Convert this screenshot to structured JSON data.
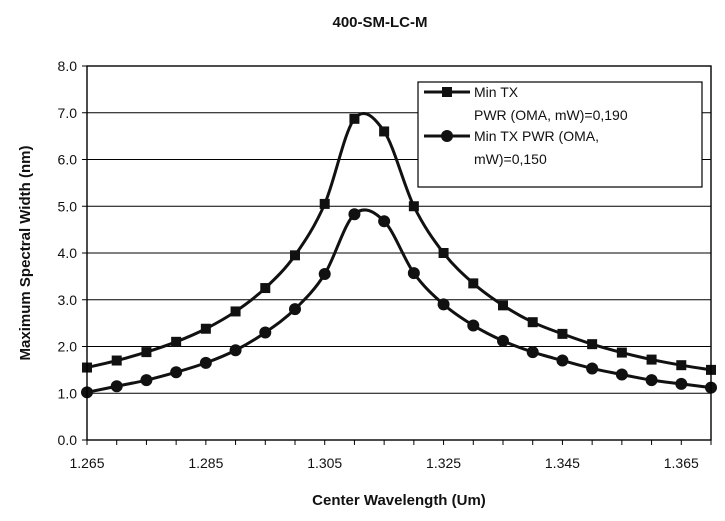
{
  "chart_data": {
    "type": "line",
    "title": "400-SM-LC-M",
    "xlabel": "Center Wavelength (Um)",
    "ylabel": "Maximum Spectral Width (nm)",
    "xlim": [
      1.265,
      1.37
    ],
    "ylim": [
      0,
      8
    ],
    "xticks": [
      "1.265",
      "1.285",
      "1.305",
      "1.325",
      "1.345",
      "1.365"
    ],
    "yticks": [
      "0.0",
      "1.0",
      "2.0",
      "3.0",
      "4.0",
      "5.0",
      "6.0",
      "7.0",
      "8.0"
    ],
    "grid": "horizontal",
    "legend_position": "top-right",
    "series": [
      {
        "name": "Min TX\nPWR (OMA, mW)=0,190",
        "marker": "square",
        "x": [
          1.265,
          1.27,
          1.275,
          1.28,
          1.285,
          1.29,
          1.295,
          1.3,
          1.305,
          1.31,
          1.315,
          1.32,
          1.325,
          1.33,
          1.335,
          1.34,
          1.345,
          1.35,
          1.355,
          1.36,
          1.365,
          1.37
        ],
        "y": [
          1.55,
          1.7,
          1.88,
          2.1,
          2.38,
          2.75,
          3.25,
          3.95,
          5.05,
          6.87,
          6.6,
          5.0,
          4.0,
          3.35,
          2.88,
          2.52,
          2.27,
          2.05,
          1.87,
          1.72,
          1.6,
          1.5
        ]
      },
      {
        "name": "Min TX PWR (OMA,\nmW)=0,150",
        "marker": "circle",
        "x": [
          1.265,
          1.27,
          1.275,
          1.28,
          1.285,
          1.29,
          1.295,
          1.3,
          1.305,
          1.31,
          1.315,
          1.32,
          1.325,
          1.33,
          1.335,
          1.34,
          1.345,
          1.35,
          1.355,
          1.36,
          1.365,
          1.37
        ],
        "y": [
          1.02,
          1.15,
          1.28,
          1.45,
          1.65,
          1.92,
          2.3,
          2.8,
          3.55,
          4.83,
          4.68,
          3.57,
          2.9,
          2.45,
          2.12,
          1.88,
          1.7,
          1.53,
          1.4,
          1.28,
          1.2,
          1.12
        ]
      }
    ],
    "colors": {
      "line": "#111111",
      "grid": "#000000",
      "background": "#ffffff"
    }
  }
}
